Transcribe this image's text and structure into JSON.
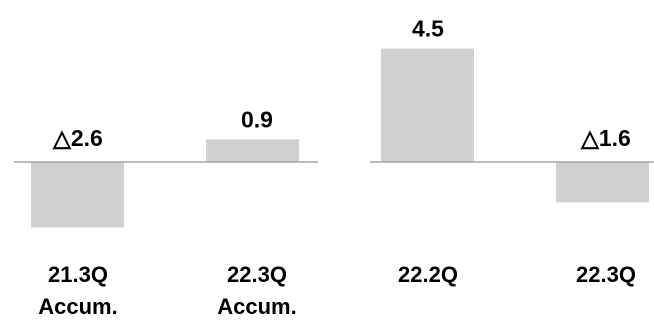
{
  "colors": {
    "bar": "#d0d0d0",
    "axis": "#a6a6a6",
    "text": "#000000"
  },
  "chart_data": [
    {
      "type": "bar",
      "categories": [
        "21.3Q Accum.",
        "22.3Q Accum."
      ],
      "category_lines": [
        [
          "21.3Q",
          "Accum."
        ],
        [
          "22.3Q",
          "Accum."
        ]
      ],
      "values": [
        -2.6,
        0.9
      ],
      "data_labels": [
        "△2.6",
        "0.9"
      ],
      "negative_marker": "△",
      "title": "",
      "xlabel": "",
      "ylabel": "",
      "ylim": [
        -2.6,
        4.5
      ],
      "grid": false,
      "legend": "none"
    },
    {
      "type": "bar",
      "categories": [
        "22.2Q",
        "22.3Q"
      ],
      "category_lines": [
        [
          "22.2Q"
        ],
        [
          "22.3Q"
        ]
      ],
      "values": [
        4.5,
        -1.6
      ],
      "data_labels": [
        "4.5",
        "△1.6"
      ],
      "negative_marker": "△",
      "title": "",
      "xlabel": "",
      "ylabel": "",
      "ylim": [
        -2.6,
        4.5
      ],
      "grid": false,
      "legend": "none"
    }
  ]
}
